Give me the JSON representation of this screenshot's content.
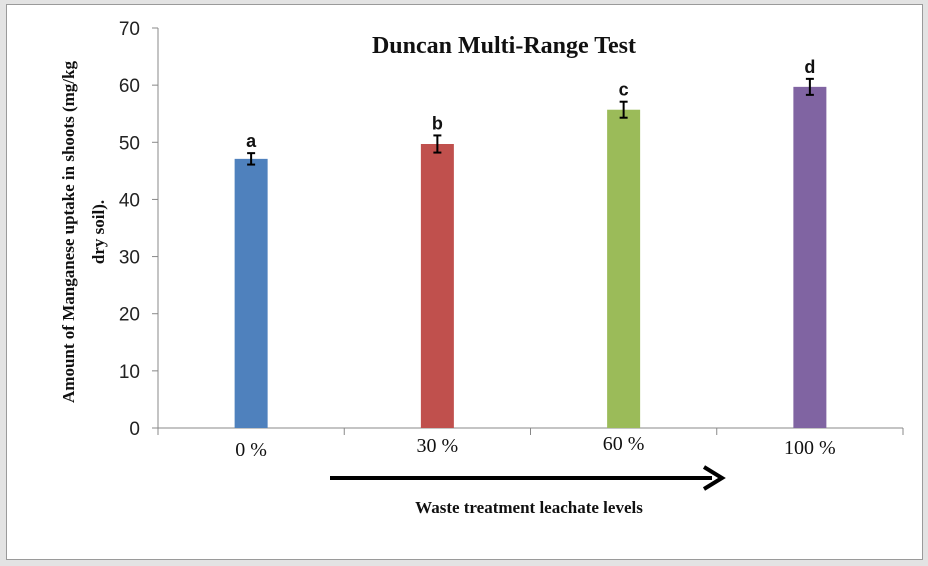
{
  "chart_data": {
    "type": "bar",
    "title": "Duncan Multi-Range Test",
    "ylabel_lines": [
      "Amount of Manganese uptake in shoots (mg/kg",
      "dry soil)."
    ],
    "xlabel": "Waste treatment leachate levels",
    "categories": [
      "0 %",
      "30 %",
      "60 %",
      "100 %"
    ],
    "values": [
      47.1,
      49.7,
      55.7,
      59.7
    ],
    "errors": [
      1.0,
      1.5,
      1.4,
      1.4
    ],
    "significance": [
      "a",
      "b",
      "c",
      "d"
    ],
    "colors": [
      "#4f81bd",
      "#c0504d",
      "#9bbb59",
      "#8064a2"
    ],
    "ylim": [
      0,
      70
    ],
    "yticks": [
      0,
      10,
      20,
      30,
      40,
      50,
      60,
      70
    ],
    "grid": false,
    "legend": "none"
  }
}
